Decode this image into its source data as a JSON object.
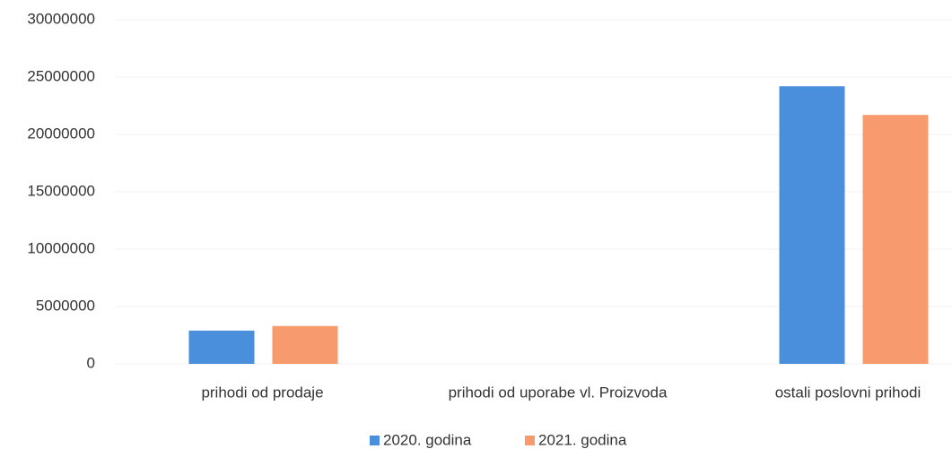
{
  "chart_data": {
    "type": "bar",
    "categories": [
      "prihodi od prodaje",
      "prihodi od uporabe vl. Proizvoda",
      "ostali poslovni prihodi"
    ],
    "series": [
      {
        "name": "2020. godina",
        "color": "#4a8fdb",
        "values": [
          2900000,
          0,
          24200000
        ]
      },
      {
        "name": "2021. godina",
        "color": "#f79a6e",
        "values": [
          3300000,
          0,
          21700000
        ]
      }
    ],
    "ylim": [
      0,
      30000000
    ],
    "yticks": [
      0,
      5000000,
      10000000,
      15000000,
      20000000,
      25000000,
      30000000
    ],
    "grid": true
  }
}
